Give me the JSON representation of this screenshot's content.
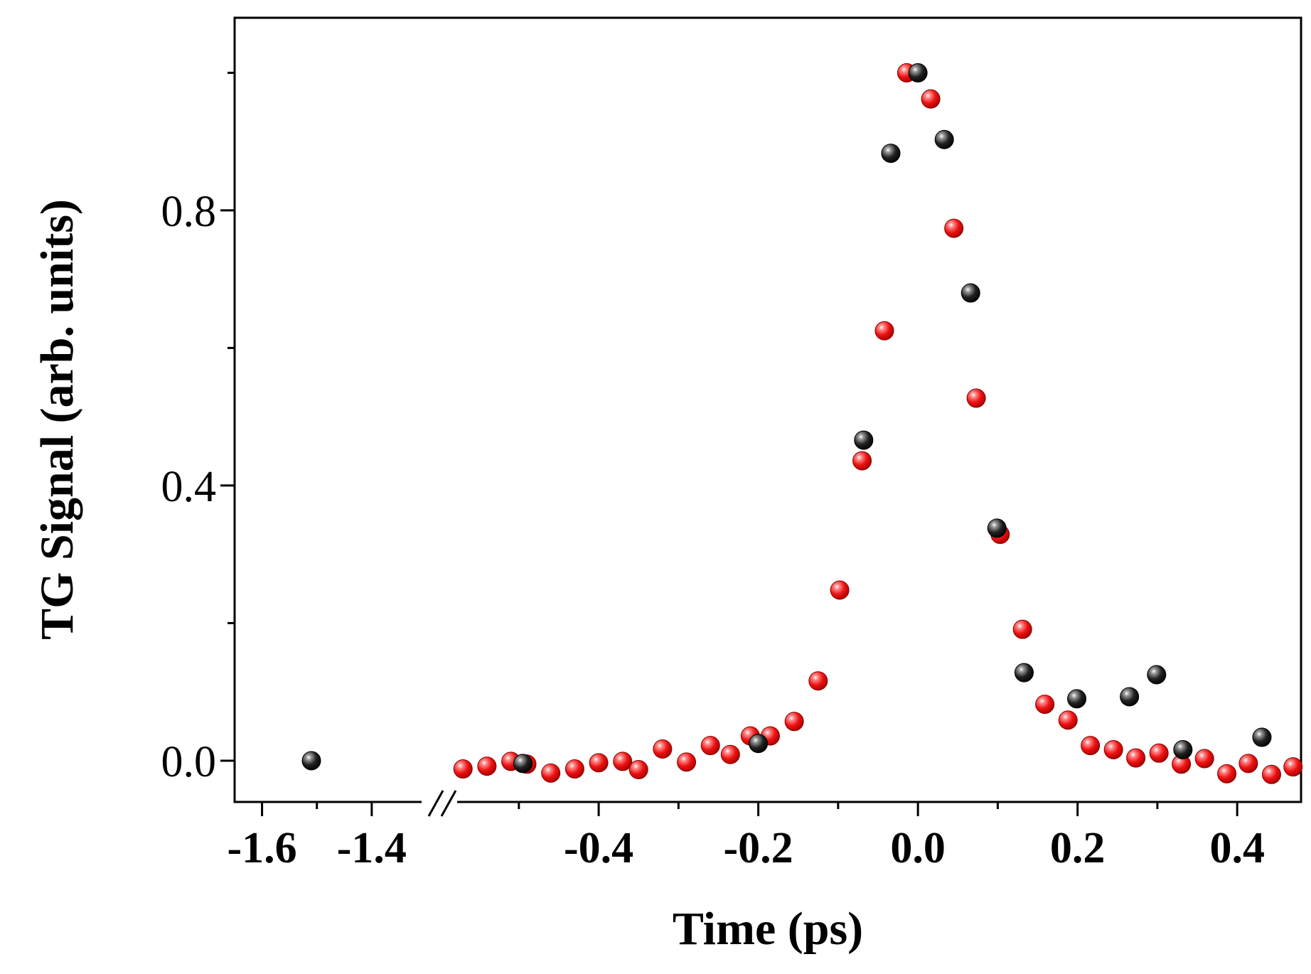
{
  "chart_data": {
    "type": "scatter",
    "title": "",
    "xlabel": "Time (ps)",
    "ylabel": "TG Signal (arb. units)",
    "axis_break": {
      "left_range": [
        -1.65,
        -1.3
      ],
      "right_range": [
        -0.58,
        0.48
      ]
    },
    "ylim": [
      -0.06,
      1.08
    ],
    "x_ticks": [
      {
        "value": -1.6,
        "label": "-1.6"
      },
      {
        "value": -1.4,
        "label": "-1.4"
      },
      {
        "value": -0.4,
        "label": "-0.4"
      },
      {
        "value": -0.2,
        "label": "-0.2"
      },
      {
        "value": 0.0,
        "label": "0.0"
      },
      {
        "value": 0.2,
        "label": "0.2"
      },
      {
        "value": 0.4,
        "label": "0.4"
      }
    ],
    "x_minor_ticks": [
      -1.5,
      -0.5,
      -0.3,
      -0.1,
      0.1,
      0.3
    ],
    "y_ticks": [
      {
        "value": 0.0,
        "label": "0.0"
      },
      {
        "value": 0.4,
        "label": "0.4"
      },
      {
        "value": 0.8,
        "label": "0.8"
      }
    ],
    "y_minor_ticks": [
      0.2,
      0.6,
      1.0
    ],
    "series": [
      {
        "name": "red",
        "color": "#ee1111",
        "x": [
          -0.57,
          -0.54,
          -0.51,
          -0.49,
          -0.46,
          -0.43,
          -0.4,
          -0.37,
          -0.35,
          -0.32,
          -0.29,
          -0.26,
          -0.235,
          -0.21,
          -0.185,
          -0.155,
          -0.125,
          -0.098,
          -0.07,
          -0.042,
          -0.014,
          0.016,
          0.045,
          0.073,
          0.103,
          0.131,
          0.159,
          0.188,
          0.216,
          0.245,
          0.273,
          0.302,
          0.33,
          0.359,
          0.387,
          0.414,
          0.443,
          0.47
        ],
        "y": [
          -0.012,
          -0.008,
          -0.001,
          -0.005,
          -0.018,
          -0.012,
          -0.003,
          -0.001,
          -0.013,
          0.017,
          -0.002,
          0.022,
          0.009,
          0.036,
          0.036,
          0.057,
          0.116,
          0.248,
          0.436,
          0.625,
          1.0,
          0.962,
          0.774,
          0.527,
          0.329,
          0.191,
          0.082,
          0.059,
          0.022,
          0.016,
          0.004,
          0.011,
          -0.005,
          0.003,
          -0.019,
          -0.004,
          -0.02,
          -0.009
        ]
      },
      {
        "name": "black",
        "color": "#111111",
        "x": [
          -1.51,
          -0.495,
          -0.2,
          -0.068,
          -0.034,
          0.0,
          0.033,
          0.066,
          0.099,
          0.133,
          0.199,
          0.265,
          0.299,
          0.332,
          0.431
        ],
        "y": [
          0.0,
          -0.004,
          0.025,
          0.466,
          0.883,
          1.0,
          0.903,
          0.68,
          0.338,
          0.128,
          0.09,
          0.093,
          0.125,
          0.016,
          0.034
        ]
      }
    ]
  }
}
